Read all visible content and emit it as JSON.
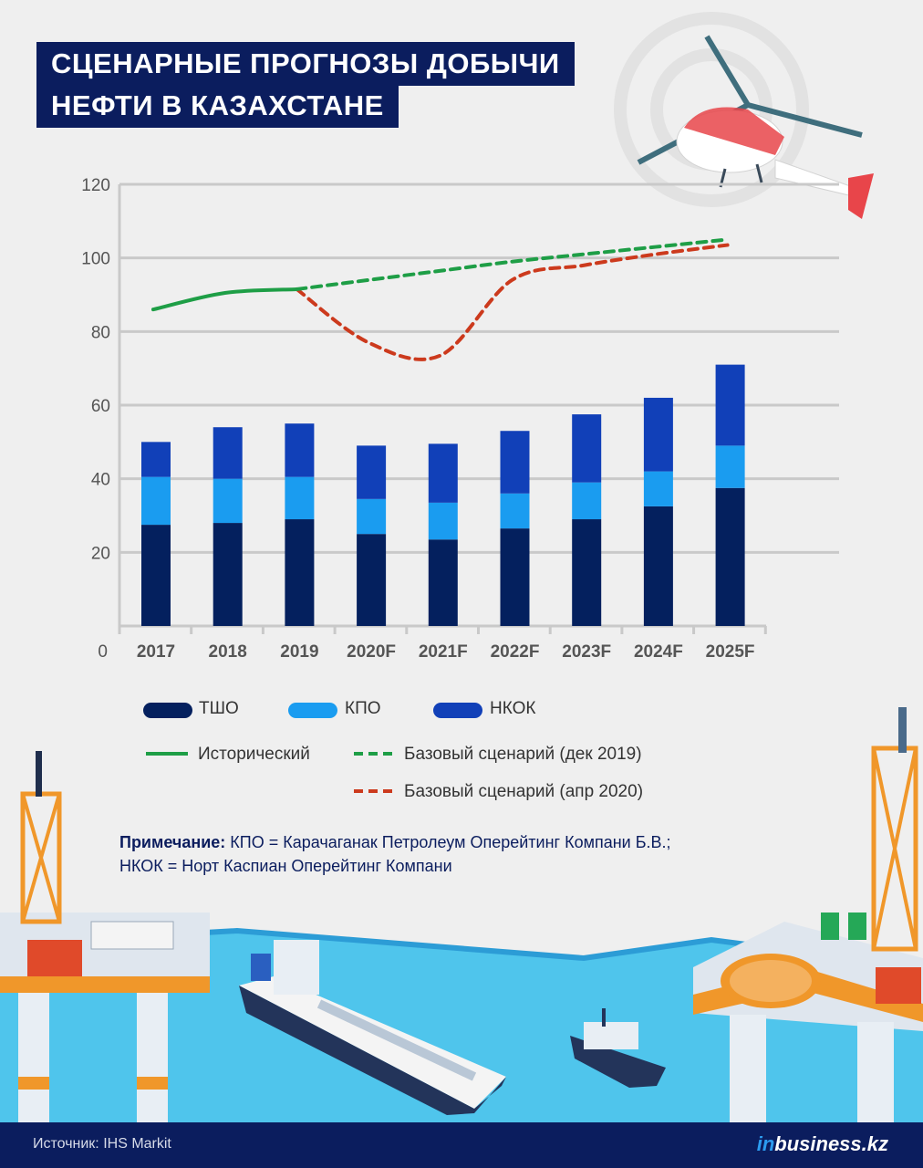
{
  "header": {
    "title_line1": "СЦЕНАРНЫЕ ПРОГНОЗЫ ДОБЫЧИ",
    "title_line2": "НЕФТИ В КАЗАХСТАНЕ"
  },
  "colors": {
    "tsho": "#04205e",
    "kpo": "#1a9cf0",
    "nkok": "#1140b8",
    "historical": "#1e9e46",
    "dec2019": "#1e9e46",
    "apr2020": "#cc3a1d",
    "navy": "#0b1d5e"
  },
  "chart_data": {
    "type": "bar",
    "stacked": true,
    "categories": [
      "2017",
      "2018",
      "2019",
      "2020F",
      "2021F",
      "2022F",
      "2023F",
      "2024F",
      "2025F"
    ],
    "series": [
      {
        "name": "ТШО",
        "values": [
          27.5,
          28,
          29,
          25,
          23.5,
          26.5,
          29,
          32.5,
          37.5
        ]
      },
      {
        "name": "КПО",
        "values": [
          13,
          12,
          11.5,
          9.5,
          10,
          9.5,
          10,
          9.5,
          11.5
        ]
      },
      {
        "name": "НКОК",
        "values": [
          9.5,
          14,
          14.5,
          14.5,
          16,
          17,
          18.5,
          20,
          22
        ]
      }
    ],
    "lines": [
      {
        "name": "Исторический",
        "style": "solid",
        "x": [
          "2017",
          "2018",
          "2019"
        ],
        "values": [
          86,
          90.5,
          91.5
        ]
      },
      {
        "name": "Базовый сценарий (дек 2019)",
        "style": "dashed",
        "x": [
          "2019",
          "2020F",
          "2021F",
          "2022F",
          "2023F",
          "2024F",
          "2025F"
        ],
        "values": [
          91.5,
          94,
          96.5,
          99,
          101,
          103,
          105
        ]
      },
      {
        "name": "Базовый сценарий (апр 2020)",
        "style": "dashed",
        "x": [
          "2019",
          "2020F",
          "2021F",
          "2022F",
          "2023F",
          "2024F",
          "2025F"
        ],
        "values": [
          91.5,
          77,
          73.5,
          94,
          98,
          101,
          103.5
        ]
      }
    ],
    "yticks": [
      "0",
      "20",
      "40",
      "60",
      "80",
      "100",
      "120"
    ],
    "ylim": [
      0,
      120
    ],
    "grid": true,
    "legend_position": "bottom"
  },
  "legend": {
    "tsho": "ТШО",
    "kpo": "КПО",
    "nkok": "НКОК",
    "historical": "Исторический",
    "dec2019": "Базовый сценарий (дек 2019)",
    "apr2020": "Базовый сценарий (апр 2020)"
  },
  "note": {
    "label": "Примечание:",
    "line1": "КПО = Карачаганак Петролеум Оперейтинг Компани Б.В.;",
    "line2": "НКОК = Норт Каспиан Оперейтинг Компани"
  },
  "footer": {
    "source": "Источник: IHS Markit",
    "logo_in": "in",
    "logo_rest": "business.kz"
  }
}
